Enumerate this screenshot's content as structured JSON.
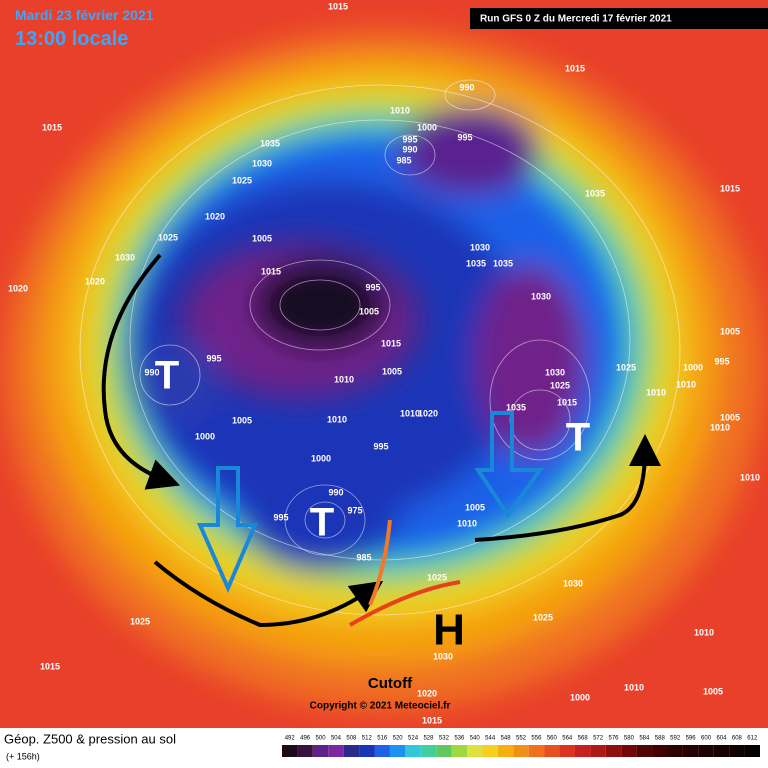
{
  "header": {
    "date": "Mardi 23 février 2021",
    "time": "13:00 locale",
    "run": "Run GFS 0 Z du Mercredi 17 février 2021"
  },
  "footer": {
    "title": "Géop. Z500 & pression au sol",
    "lead": "(+ 156h)",
    "copyright": "Copyright © 2021 Meteociel.fr"
  },
  "annotations": {
    "low_markers": [
      "T",
      "T",
      "T"
    ],
    "high_marker": "H",
    "cutoff": "Cutoff"
  },
  "isobar_labels": [
    "1015",
    "1015",
    "1015",
    "990",
    "1010",
    "1000",
    "995",
    "995",
    "990",
    "985",
    "1035",
    "1030",
    "1025",
    "1020",
    "1025",
    "1005",
    "1030",
    "1015",
    "1020",
    "1020",
    "1030",
    "1035",
    "1035",
    "995",
    "1005",
    "1030",
    "1015",
    "1035",
    "1015",
    "995",
    "990",
    "1010",
    "1005",
    "1030",
    "1025",
    "1025",
    "1000",
    "995",
    "1005",
    "1010",
    "1010",
    "1015",
    "1035",
    "1010",
    "1020",
    "1010",
    "1005",
    "1005",
    "1010",
    "1000",
    "995",
    "1000",
    "990",
    "995",
    "1005",
    "1010",
    "975",
    "985",
    "1010",
    "1025",
    "1030",
    "1025",
    "1025",
    "1015",
    "1030",
    "1020",
    "1015",
    "1010",
    "1005",
    "1000",
    "1010",
    "1010"
  ],
  "legend": {
    "labels": [
      492,
      496,
      500,
      504,
      508,
      512,
      516,
      520,
      524,
      528,
      532,
      536,
      540,
      544,
      548,
      552,
      556,
      560,
      564,
      568,
      572,
      576,
      580,
      584,
      588,
      592,
      596,
      600,
      604,
      608,
      612
    ]
  }
}
